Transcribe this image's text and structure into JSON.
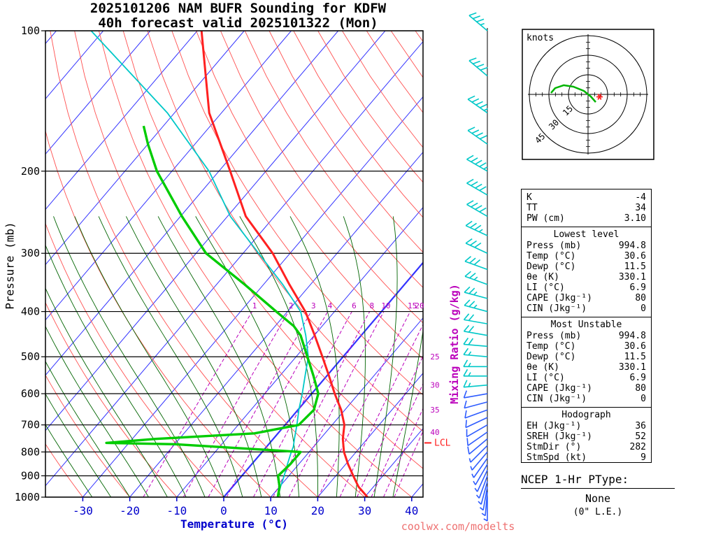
{
  "title": {
    "line1": "2025101206 NAM BUFR Sounding for KDFW",
    "line2": "40h forecast valid 2025101322 (Mon)"
  },
  "watermark": "coolwx.com/modelts",
  "colors": {
    "temperature": "#ff2020",
    "dewpoint": "#00cc00",
    "parcel": "#00c8c8",
    "isotherm": "#3333ff",
    "dry_adiabat": "#ff5050",
    "moist_adiabat": "#006400",
    "mixing_ratio": "#bb00bb",
    "barb_upper": "#00c8c8",
    "barb_lower": "#2e5cff",
    "axis_temp_label": "#0000cc",
    "watermark": "#ee7070",
    "lcl": "#ff2020",
    "hodo_trace": "#00b400",
    "storm_motion": "#ff2020"
  },
  "axes": {
    "pressure_label": "Pressure (mb)",
    "temperature_label": "Temperature (°C)",
    "mixing_label": "Mixing Ratio (g/kg)",
    "pressure_ticks": [
      100,
      200,
      300,
      400,
      500,
      600,
      700,
      800,
      900,
      1000
    ],
    "temperature_ticks": [
      -30,
      -20,
      -10,
      0,
      10,
      20,
      30,
      40
    ],
    "mixing_ratio_lines": [
      1,
      2,
      3,
      4,
      6,
      8,
      10,
      15,
      20,
      25,
      30,
      35,
      40
    ],
    "lcl_label": "LCL"
  },
  "chart_data": {
    "type": "skewt-log-p",
    "pressure_range": [
      100,
      1000
    ],
    "surface_temperature_range": [
      -40,
      45
    ],
    "lcl_pressure": 765,
    "sounding": {
      "temperature": {
        "pressure": [
          1000,
          950,
          900,
          850,
          800,
          750,
          700,
          650,
          600,
          550,
          500,
          450,
          400,
          350,
          300,
          250,
          200,
          150,
          100
        ],
        "values": [
          30.6,
          26.8,
          23.7,
          20.5,
          17.4,
          14.8,
          12.6,
          9.2,
          4.9,
          0.5,
          -4.4,
          -9.9,
          -16.2,
          -24.5,
          -33.7,
          -46.1,
          -57.6,
          -72.6,
          -89.1
        ]
      },
      "dewpoint": {
        "pressure": [
          1000,
          950,
          900,
          850,
          800,
          770,
          765,
          750,
          730,
          700,
          650,
          600,
          550,
          500,
          450,
          430,
          400,
          350,
          300,
          250,
          200,
          175,
          160
        ],
        "values": [
          11.5,
          10.0,
          7.7,
          8.2,
          8.2,
          -20.0,
          -34.8,
          -25.0,
          -5.0,
          2.9,
          3.4,
          1.4,
          -2.8,
          -7.6,
          -12.9,
          -16.0,
          -22.4,
          -34.0,
          -47.9,
          -59.7,
          -73.2,
          -80.0,
          -84.2
        ]
      },
      "wetbulb_parcel": {
        "pressure": [
          1000,
          950,
          900,
          850,
          800,
          780,
          750,
          700,
          650,
          600,
          550,
          500,
          450,
          400,
          350,
          300,
          250,
          200,
          150,
          100
        ],
        "values": [
          11.5,
          10.2,
          9.0,
          7.6,
          6.2,
          5.7,
          4.5,
          2.5,
          0.2,
          -2.0,
          -4.6,
          -7.4,
          -11.8,
          -17.2,
          -25.9,
          -36.7,
          -49.4,
          -62.1,
          -81.5,
          -112.6
        ]
      }
    },
    "winds_p_dir_spd": [
      [
        100,
        310,
        35
      ],
      [
        125,
        310,
        40
      ],
      [
        150,
        305,
        45
      ],
      [
        175,
        305,
        40
      ],
      [
        200,
        300,
        45
      ],
      [
        225,
        300,
        40
      ],
      [
        250,
        300,
        40
      ],
      [
        275,
        295,
        35
      ],
      [
        300,
        295,
        30
      ],
      [
        325,
        290,
        30
      ],
      [
        350,
        290,
        25
      ],
      [
        375,
        285,
        25
      ],
      [
        400,
        285,
        25
      ],
      [
        425,
        280,
        20
      ],
      [
        450,
        280,
        20
      ],
      [
        475,
        275,
        20
      ],
      [
        500,
        275,
        15
      ],
      [
        525,
        270,
        15
      ],
      [
        550,
        270,
        15
      ],
      [
        575,
        265,
        15
      ],
      [
        600,
        260,
        10
      ],
      [
        625,
        255,
        10
      ],
      [
        650,
        250,
        10
      ],
      [
        675,
        245,
        10
      ],
      [
        700,
        240,
        10
      ],
      [
        725,
        235,
        10
      ],
      [
        750,
        230,
        10
      ],
      [
        775,
        225,
        5
      ],
      [
        800,
        220,
        5
      ],
      [
        825,
        215,
        5
      ],
      [
        850,
        210,
        5
      ],
      [
        875,
        205,
        5
      ],
      [
        900,
        200,
        5
      ],
      [
        925,
        195,
        5
      ],
      [
        950,
        190,
        5
      ],
      [
        975,
        185,
        5
      ],
      [
        1000,
        180,
        5
      ]
    ],
    "hodograph": {
      "units_label": "knots",
      "rings": [
        15,
        30,
        45
      ],
      "trace_uv": [
        [
          5.9,
          -5.9
        ],
        [
          2.1,
          -1.6
        ],
        [
          -3.2,
          2.7
        ],
        [
          -11.2,
          5.9
        ],
        [
          -18.7,
          7.0
        ],
        [
          -25.2,
          4.8
        ],
        [
          -28.4,
          1.1
        ]
      ],
      "storm_motion": {
        "dir": 282,
        "spd": 9
      }
    }
  },
  "stats": {
    "top": [
      [
        "K",
        "-4"
      ],
      [
        "TT",
        "34"
      ],
      [
        "PW (cm)",
        "3.10"
      ]
    ],
    "sections": [
      {
        "header": "Lowest level",
        "rows": [
          [
            "Press (mb)",
            "994.8"
          ],
          [
            "Temp (°C)",
            "30.6"
          ],
          [
            "Dewp (°C)",
            "11.5"
          ],
          [
            "θe (K)",
            "330.1"
          ],
          [
            "LI (°C)",
            "6.9"
          ],
          [
            "CAPE (Jkg⁻¹)",
            "80"
          ],
          [
            "CIN (Jkg⁻¹)",
            "0"
          ]
        ]
      },
      {
        "header": "Most Unstable",
        "rows": [
          [
            "Press (mb)",
            "994.8"
          ],
          [
            "Temp (°C)",
            "30.6"
          ],
          [
            "Dewp (°C)",
            "11.5"
          ],
          [
            "θe (K)",
            "330.1"
          ],
          [
            "LI (°C)",
            "6.9"
          ],
          [
            "CAPE (Jkg⁻¹)",
            "80"
          ],
          [
            "CIN (Jkg⁻¹)",
            "0"
          ]
        ]
      },
      {
        "header": "Hodograph",
        "rows": [
          [
            "EH (Jkg⁻¹)",
            "36"
          ],
          [
            "SREH (Jkg⁻¹)",
            "52"
          ],
          [
            "StmDir (°)",
            "282"
          ],
          [
            "StmSpd (kt)",
            "9"
          ]
        ]
      }
    ]
  },
  "ptype": {
    "heading": "NCEP 1-Hr PType:",
    "value": "None",
    "note": "(0\" L.E.)"
  }
}
